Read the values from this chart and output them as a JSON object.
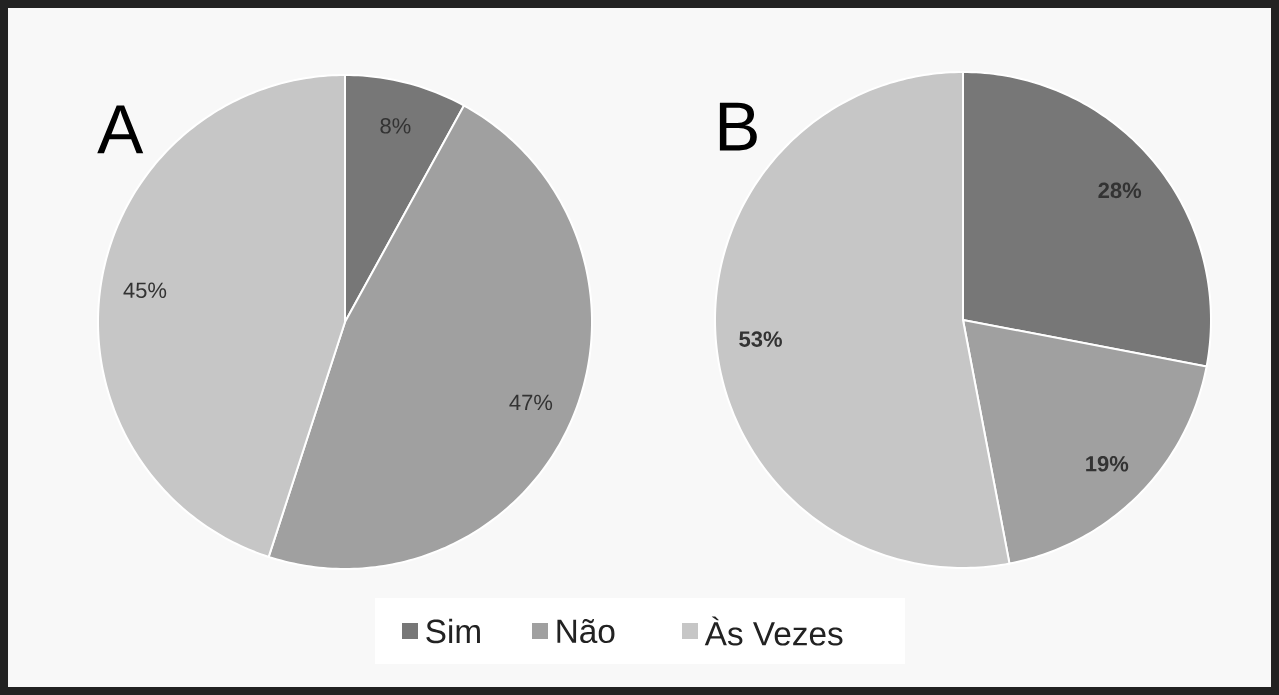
{
  "chart_data": [
    {
      "type": "pie",
      "title": "A",
      "categories": [
        "Sim",
        "Não",
        "Às Vezes"
      ],
      "values": [
        8,
        47,
        45
      ],
      "value_labels": [
        "8%",
        "47%",
        "45%"
      ],
      "colors": [
        "#777777",
        "#a0a0a0",
        "#c6c6c6"
      ],
      "legend": "bottom"
    },
    {
      "type": "pie",
      "title": "B",
      "categories": [
        null,
        null,
        null
      ],
      "values": [
        28,
        19,
        53
      ],
      "value_labels": [
        "28%",
        "19%",
        "53%"
      ],
      "colors": [
        "#777777",
        "#a0a0a0",
        "#c6c6c6"
      ]
    }
  ]
}
